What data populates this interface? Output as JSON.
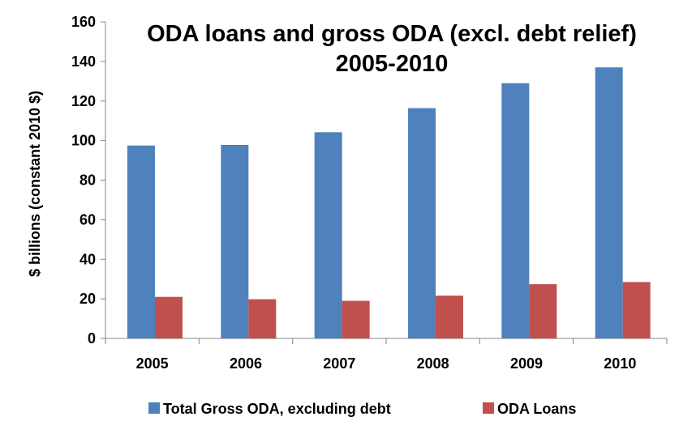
{
  "chart_data": {
    "type": "bar",
    "title": "ODA loans and gross ODA (excl. debt relief) 2005-2010",
    "title_lines": [
      "ODA loans and gross ODA (excl. debt relief)",
      "2005-2010"
    ],
    "xlabel": "",
    "ylabel": "$ billions (constant 2010 $)",
    "ylim": [
      0,
      160
    ],
    "yticks": [
      "0",
      "20",
      "40",
      "60",
      "80",
      "100",
      "120",
      "140",
      "160"
    ],
    "categories": [
      "2005",
      "2006",
      "2007",
      "2008",
      "2009",
      "2010"
    ],
    "series": [
      {
        "name": "Total Gross ODA, excluding debt",
        "color": "#4F81BD",
        "values": [
          97.5,
          97.8,
          104.2,
          116.4,
          129.0,
          137.0
        ]
      },
      {
        "name": "ODA Loans",
        "color": "#C0504D",
        "values": [
          21.0,
          19.8,
          19.0,
          21.6,
          27.4,
          28.5
        ]
      }
    ],
    "grid": false,
    "legend_position": "bottom"
  }
}
